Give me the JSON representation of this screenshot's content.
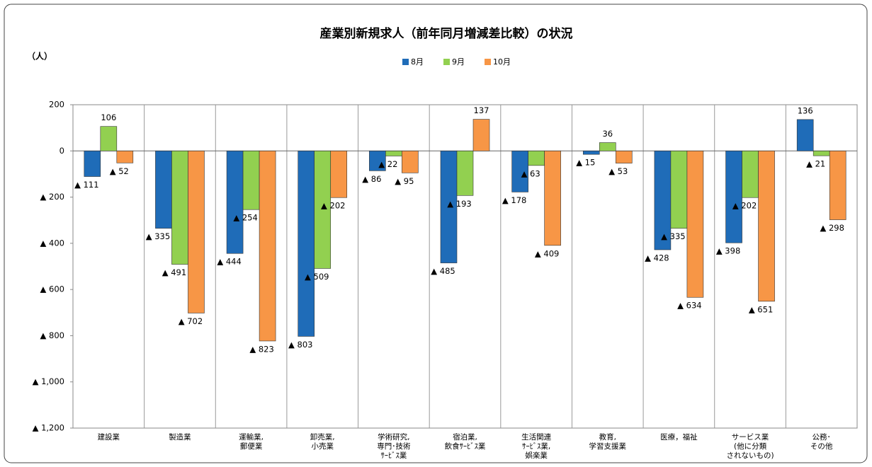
{
  "chart_data": {
    "type": "bar",
    "title": "産業別新規求人（前年同月増減差比較）の状況",
    "y_label": "（人）",
    "categories": [
      "建設業",
      "製造業",
      "運輸業,\n郵便業",
      "卸売業,\n小売業",
      "学術研究,\n専門･技術\nｻｰﾋﾞｽ業",
      "宿泊業,\n飲食ｻｰﾋﾞｽ業",
      "生活関連\nｻｰﾋﾞｽ業,\n娯楽業",
      "教育,\n学習支援業",
      "医療，福祉",
      "サービス業\n(他に分類\nされないもの)",
      "公務･\nその他"
    ],
    "series": [
      {
        "name": "8月",
        "color": "#1f6cb8",
        "values": [
          -111,
          -335,
          -444,
          -803,
          -86,
          -485,
          -178,
          -15,
          -428,
          -398,
          136
        ],
        "value_labels": [
          "▲ 111",
          "▲ 335",
          "▲ 444",
          "▲ 803",
          "▲ 86",
          "▲ 485",
          "▲ 178",
          "▲ 15",
          "▲ 428",
          "▲ 398",
          "136"
        ]
      },
      {
        "name": "9月",
        "color": "#92d050",
        "values": [
          106,
          -491,
          -254,
          -509,
          -22,
          -193,
          -63,
          36,
          -335,
          -202,
          -21
        ],
        "value_labels": [
          "106",
          "▲ 491",
          "▲ 254",
          "▲ 509",
          "▲ 22",
          "▲ 193",
          "▲ 63",
          "36",
          "▲ 335",
          "▲ 202",
          "▲ 21"
        ]
      },
      {
        "name": "10月",
        "color": "#f79646",
        "values": [
          -52,
          -702,
          -823,
          -202,
          -95,
          137,
          -409,
          -53,
          -634,
          -651,
          -298
        ],
        "value_labels": [
          "▲ 52",
          "▲ 702",
          "▲ 823",
          "▲ 202",
          "▲ 95",
          "137",
          "▲ 409",
          "▲ 53",
          "▲ 634",
          "▲ 651",
          "▲ 298"
        ]
      }
    ],
    "ylim": [
      -1200,
      200
    ],
    "yticks": [
      200,
      0,
      {
        "value": -200,
        "label": "▲ 200"
      },
      {
        "value": -400,
        "label": "▲ 400"
      },
      {
        "value": -600,
        "label": "▲ 600"
      },
      {
        "value": -800,
        "label": "▲ 800"
      },
      {
        "value": -1000,
        "label": "▲ 1,000"
      },
      {
        "value": -1200,
        "label": "▲ 1,200"
      }
    ],
    "legend": "top",
    "grid": false
  }
}
